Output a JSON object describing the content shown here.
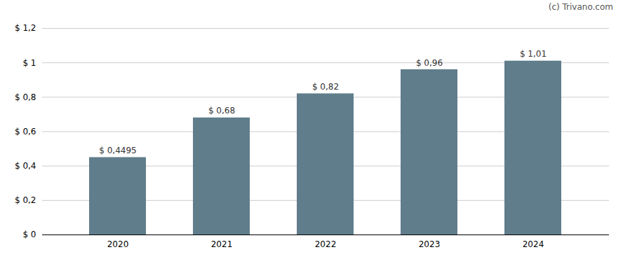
{
  "chart_data": {
    "type": "bar",
    "categories": [
      "2020",
      "2021",
      "2022",
      "2023",
      "2024"
    ],
    "values": [
      0.4495,
      0.68,
      0.82,
      0.96,
      1.01
    ],
    "value_labels": [
      "$ 0,4495",
      "$ 0,68",
      "$ 0,82",
      "$ 0,96",
      "$ 1,01"
    ],
    "data_labels": true,
    "color": "#607d8b",
    "ylim": [
      0,
      1.2
    ],
    "yticks": [
      {
        "value": 0,
        "label": "$ 0"
      },
      {
        "value": 0.2,
        "label": "$ 0,2"
      },
      {
        "value": 0.4,
        "label": "$ 0,4"
      },
      {
        "value": 0.6,
        "label": "$ 0,6"
      },
      {
        "value": 0.8,
        "label": "$ 0,8"
      },
      {
        "value": 1.0,
        "label": "$ 1"
      },
      {
        "value": 1.2,
        "label": "$ 1,2"
      }
    ],
    "grid": true,
    "annotations": [
      "(c) Trivano.com"
    ]
  }
}
